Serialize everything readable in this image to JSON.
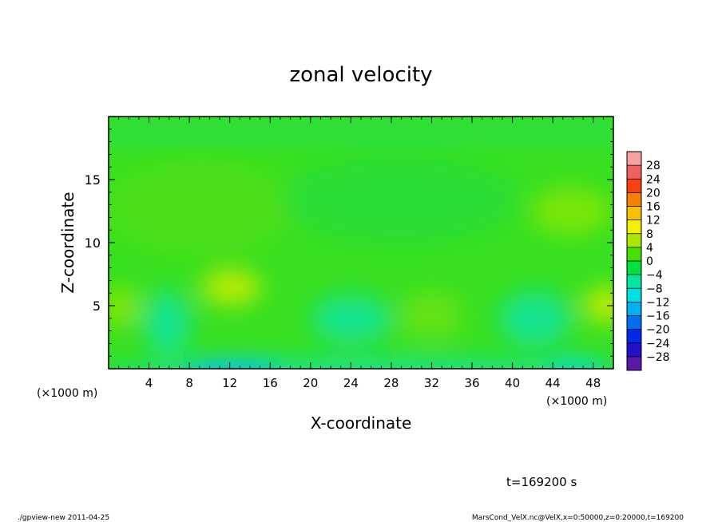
{
  "chart_data": {
    "type": "heatmap",
    "title": "zonal velocity",
    "xlabel": "X-coordinate",
    "ylabel": "Z-coordinate",
    "x_unit_left": "(×1000 m)",
    "x_unit_right": "(×1000 m)",
    "xlim": [
      0,
      50
    ],
    "ylim": [
      0,
      20
    ],
    "x_ticks": [
      4,
      8,
      12,
      16,
      20,
      24,
      28,
      32,
      36,
      40,
      44,
      48
    ],
    "y_ticks": [
      5,
      10,
      15
    ],
    "colorbar": {
      "levels": [
        -28,
        -24,
        -20,
        -16,
        -12,
        -8,
        -4,
        0,
        4,
        8,
        12,
        16,
        20,
        24,
        28
      ],
      "colors": [
        "#5a18a8",
        "#2010c8",
        "#0028e8",
        "#0070f0",
        "#00b0f0",
        "#00e0e0",
        "#00e8a0",
        "#00e040",
        "#48e000",
        "#a8e800",
        "#f0f000",
        "#f8c000",
        "#f88000",
        "#f84010",
        "#f06060",
        "#f8a0a0"
      ]
    },
    "grid": false,
    "features": [
      {
        "x": 12.5,
        "z": 0.6,
        "value": -9,
        "desc": "cyan minimum near surface"
      },
      {
        "x": 11.5,
        "z": 6.5,
        "value": 7,
        "desc": "yellow-green maximum"
      },
      {
        "x": 48,
        "z": 5,
        "value": 7,
        "desc": "yellow-green maximum"
      },
      {
        "x": 44,
        "z": 12.5,
        "value": 5,
        "desc": "yellow-green maximum"
      },
      {
        "x": 6,
        "z": 3.5,
        "value": -4,
        "desc": "teal minimum"
      },
      {
        "x": 24,
        "z": 3.8,
        "value": -5,
        "desc": "teal minimum"
      },
      {
        "x": 42,
        "z": 4,
        "value": -5,
        "desc": "teal minimum"
      }
    ]
  },
  "annotations": {
    "time": "t=169200 s",
    "footer_left": "./gpview-new  2011-04-25",
    "footer_right": "MarsCond_VelX.nc@VelX,x=0:50000,z=0:20000,t=169200"
  }
}
